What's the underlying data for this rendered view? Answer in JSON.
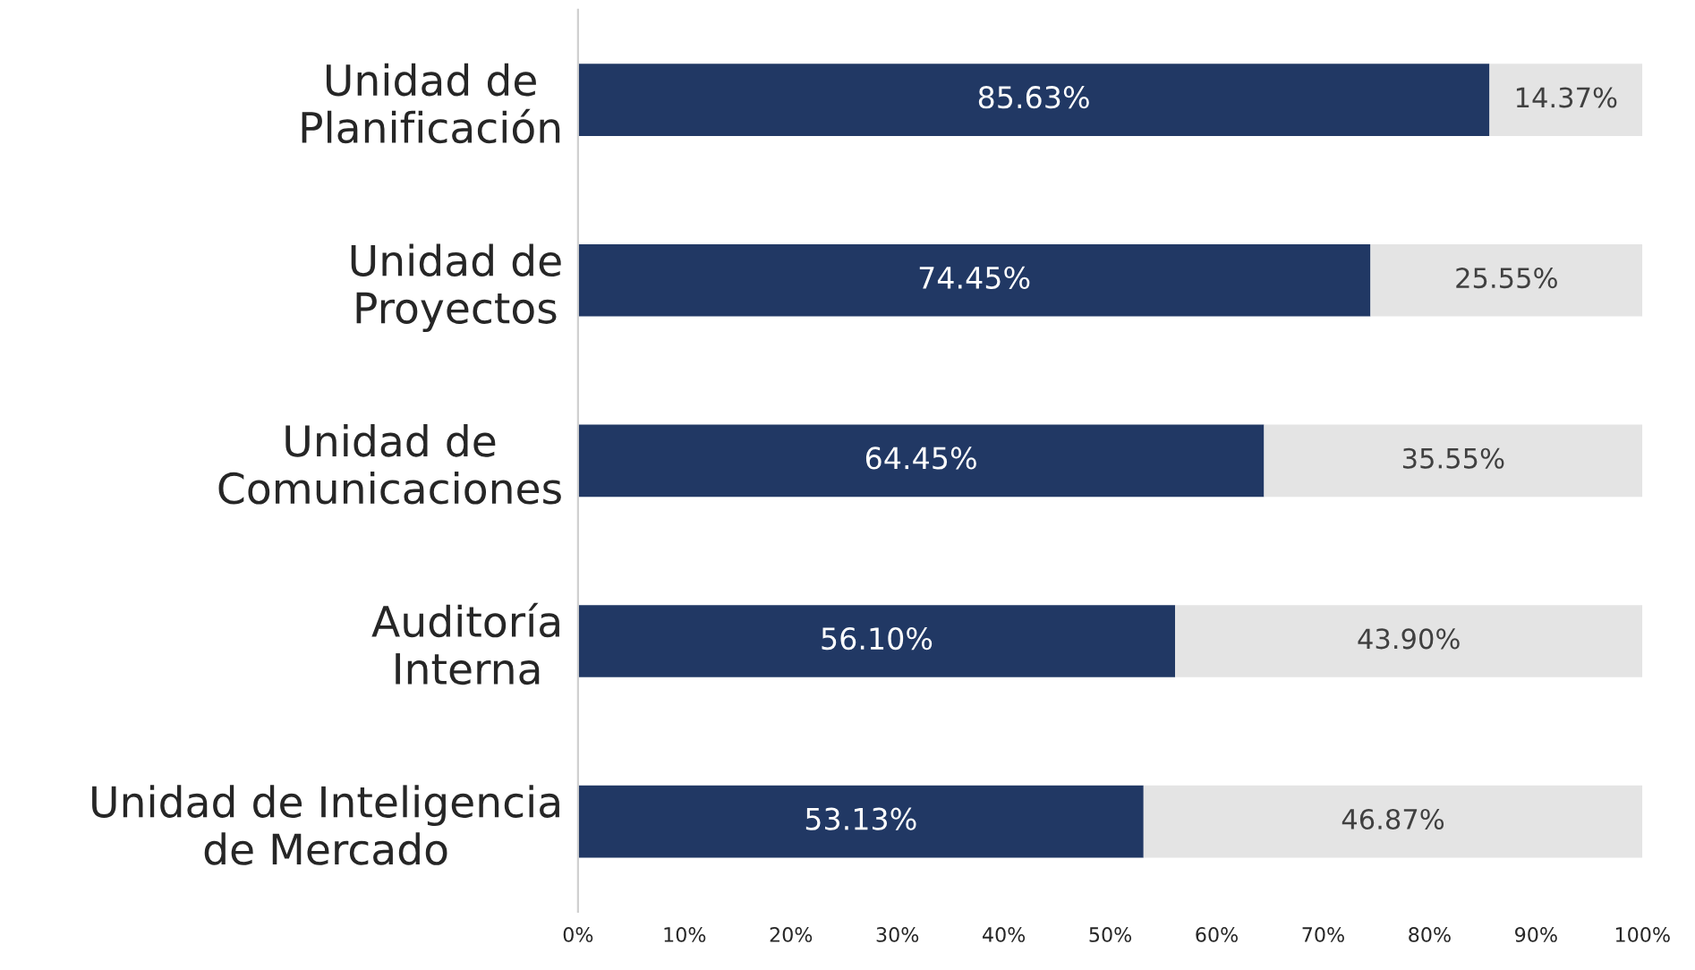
{
  "chart_data": {
    "type": "bar",
    "orientation": "horizontal",
    "stacked": true,
    "categories": [
      "Unidad de\nPlanificación",
      "Unidad de\nProyectos",
      "Unidad de\nComunicaciones",
      "Auditoría\nInterna",
      "Unidad de Inteligencia\nde Mercado"
    ],
    "series": [
      {
        "color": "#213864",
        "values": [
          85.63,
          74.45,
          64.45,
          56.1,
          53.13
        ],
        "value_labels": [
          "85.63%",
          "74.45%",
          "64.45%",
          "56.10%",
          "53.13%"
        ]
      },
      {
        "color": "#e4e4e4",
        "values": [
          14.37,
          25.55,
          35.55,
          43.9,
          46.87
        ],
        "value_labels": [
          "14.37%",
          "25.55%",
          "35.55%",
          "43.90%",
          "46.87%"
        ]
      }
    ],
    "xlim": [
      0,
      100
    ],
    "xticks": [
      {
        "value": 0,
        "label": "0%"
      },
      {
        "value": 10,
        "label": "10%"
      },
      {
        "value": 20,
        "label": "20%"
      },
      {
        "value": 30,
        "label": "30%"
      },
      {
        "value": 40,
        "label": "40%"
      },
      {
        "value": 50,
        "label": "50%"
      },
      {
        "value": 60,
        "label": "60%"
      },
      {
        "value": 70,
        "label": "70%"
      },
      {
        "value": 80,
        "label": "80%"
      },
      {
        "value": 90,
        "label": "90%"
      },
      {
        "value": 100,
        "label": "100%"
      }
    ],
    "grid": false,
    "legend": false
  }
}
